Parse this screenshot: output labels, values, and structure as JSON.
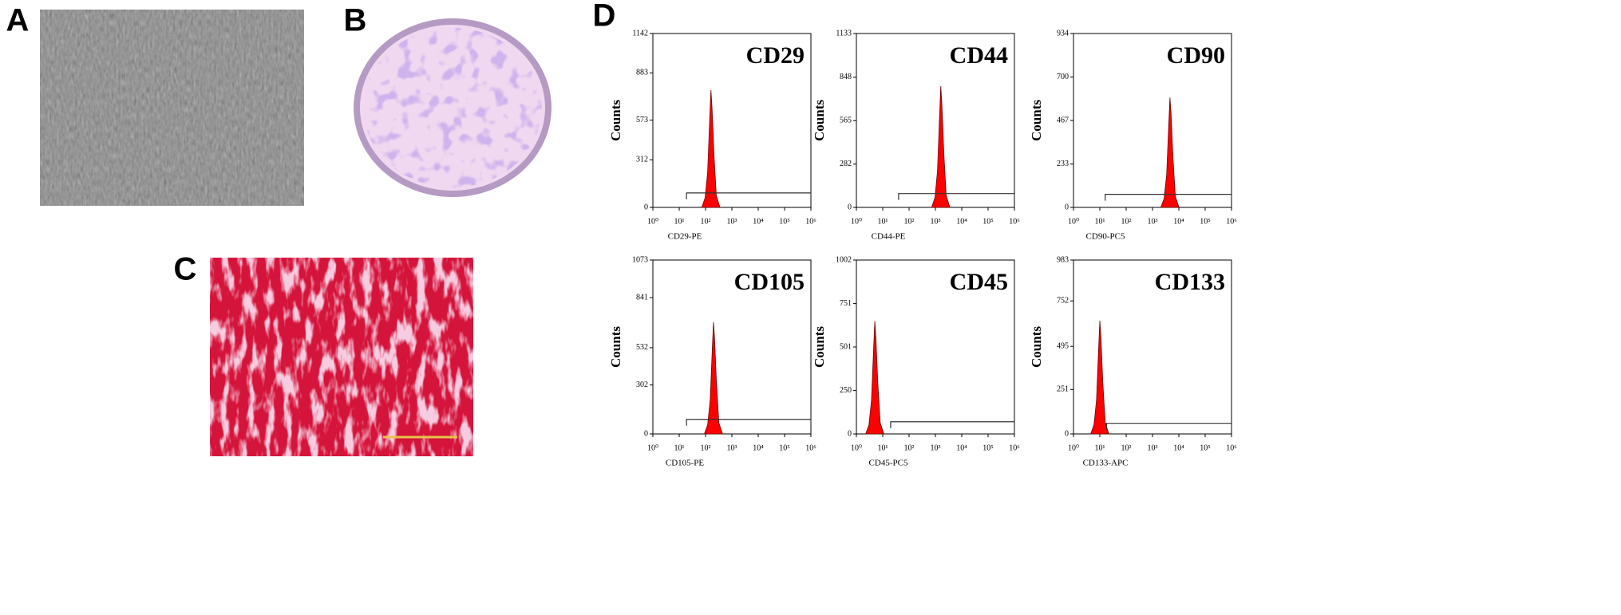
{
  "panel_labels": [
    "A",
    "B",
    "C",
    "D"
  ],
  "chart_data": [
    {
      "type": "histogram",
      "title": "CD29",
      "xlabel": "CD29-PE",
      "ylabel": "Counts",
      "color": "#ff0000",
      "log_x": true,
      "xlim": [
        1,
        1000000
      ],
      "xticks": [
        {
          "value": 1,
          "label": "10⁰"
        },
        {
          "value": 10,
          "label": "10¹"
        },
        {
          "value": 100,
          "label": "10²"
        },
        {
          "value": 1000,
          "label": "10³"
        },
        {
          "value": 10000,
          "label": "10⁴"
        },
        {
          "value": 100000,
          "label": "10⁵"
        },
        {
          "value": 1000000,
          "label": "10⁶"
        }
      ],
      "ylim": [
        0,
        1142
      ],
      "yticks": [
        0,
        312,
        573,
        883,
        1142
      ],
      "x": [
        72,
        96,
        120,
        144,
        160,
        176,
        208,
        256,
        352
      ],
      "values": [
        0,
        62,
        231,
        578,
        770,
        655,
        347,
        77,
        0
      ],
      "gate": {
        "x": [
          19,
          1000000
        ],
        "y": 95
      }
    },
    {
      "type": "histogram",
      "title": "CD44",
      "xlabel": "CD44-PE",
      "ylabel": "Counts",
      "color": "#ff0000",
      "log_x": true,
      "xlim": [
        1,
        1000000
      ],
      "xticks": [
        {
          "value": 1,
          "label": "10⁰"
        },
        {
          "value": 10,
          "label": "10¹"
        },
        {
          "value": 100,
          "label": "10²"
        },
        {
          "value": 1000,
          "label": "10³"
        },
        {
          "value": 10000,
          "label": "10⁴"
        },
        {
          "value": 100000,
          "label": "10⁵"
        },
        {
          "value": 1000000,
          "label": "10⁶"
        }
      ],
      "ylim": [
        0,
        1133
      ],
      "yticks": [
        0,
        282,
        565,
        848,
        1133
      ],
      "x": [
        720,
        960,
        1200,
        1440,
        1600,
        1760,
        2080,
        2560,
        3520
      ],
      "values": [
        0,
        63,
        237,
        593,
        790,
        672,
        356,
        79,
        0
      ],
      "gate": {
        "x": [
          40,
          1000000
        ],
        "y": 90
      }
    },
    {
      "type": "histogram",
      "title": "CD90",
      "xlabel": "CD90-PC5",
      "ylabel": "Counts",
      "color": "#ff0000",
      "log_x": true,
      "xlim": [
        1,
        1000000
      ],
      "xticks": [
        {
          "value": 1,
          "label": "10⁰"
        },
        {
          "value": 10,
          "label": "10¹"
        },
        {
          "value": 100,
          "label": "10²"
        },
        {
          "value": 1000,
          "label": "10³"
        },
        {
          "value": 10000,
          "label": "10⁴"
        },
        {
          "value": 100000,
          "label": "10⁵"
        },
        {
          "value": 1000000,
          "label": "10⁶"
        }
      ],
      "ylim": [
        0,
        934
      ],
      "yticks": [
        0,
        233,
        467,
        700,
        934
      ],
      "x": [
        2070,
        2760,
        3450,
        4140,
        4600,
        5060,
        5980,
        7360,
        10120
      ],
      "values": [
        0,
        47,
        177,
        443,
        590,
        502,
        266,
        59,
        0
      ],
      "gate": {
        "x": [
          16,
          1000000
        ],
        "y": 70
      }
    },
    {
      "type": "histogram",
      "title": "CD105",
      "xlabel": "CD105-PE",
      "ylabel": "Counts",
      "color": "#ff0000",
      "log_x": true,
      "xlim": [
        1,
        1000000
      ],
      "xticks": [
        {
          "value": 1,
          "label": "10⁰"
        },
        {
          "value": 10,
          "label": "10¹"
        },
        {
          "value": 100,
          "label": "10²"
        },
        {
          "value": 1000,
          "label": "10³"
        },
        {
          "value": 10000,
          "label": "10⁴"
        },
        {
          "value": 100000,
          "label": "10⁵"
        },
        {
          "value": 1000000,
          "label": "10⁶"
        }
      ],
      "ylim": [
        0,
        1073
      ],
      "yticks": [
        0,
        302,
        532,
        841,
        1073
      ],
      "x": [
        90,
        120,
        150,
        180,
        200,
        220,
        260,
        320,
        440
      ],
      "values": [
        0,
        55,
        207,
        518,
        690,
        587,
        311,
        69,
        0
      ],
      "gate": {
        "x": [
          19,
          1000000
        ],
        "y": 90
      }
    },
    {
      "type": "histogram",
      "title": "CD45",
      "xlabel": "CD45-PC5",
      "ylabel": "Counts",
      "color": "#ff0000",
      "log_x": true,
      "xlim": [
        1,
        1000000
      ],
      "xticks": [
        {
          "value": 1,
          "label": "10⁰"
        },
        {
          "value": 10,
          "label": "10¹"
        },
        {
          "value": 100,
          "label": "10²"
        },
        {
          "value": 1000,
          "label": "10³"
        },
        {
          "value": 10000,
          "label": "10⁴"
        },
        {
          "value": 100000,
          "label": "10⁵"
        },
        {
          "value": 1000000,
          "label": "10⁶"
        }
      ],
      "ylim": [
        0,
        1002
      ],
      "yticks": [
        0,
        250,
        501,
        751,
        1002
      ],
      "x": [
        2.25,
        3,
        3.75,
        4.5,
        5,
        5.5,
        6.5,
        8,
        11
      ],
      "values": [
        0,
        52,
        195,
        488,
        650,
        553,
        293,
        65,
        0
      ],
      "gate": {
        "x": [
          20,
          1000000
        ],
        "y": 70
      }
    },
    {
      "type": "histogram",
      "title": "CD133",
      "xlabel": "CD133-APC",
      "ylabel": "Counts",
      "color": "#ff0000",
      "log_x": true,
      "xlim": [
        1,
        1000000
      ],
      "xticks": [
        {
          "value": 1,
          "label": "10⁰"
        },
        {
          "value": 10,
          "label": "10¹"
        },
        {
          "value": 100,
          "label": "10²"
        },
        {
          "value": 1000,
          "label": "10³"
        },
        {
          "value": 10000,
          "label": "10⁴"
        },
        {
          "value": 100000,
          "label": "10⁵"
        },
        {
          "value": 1000000,
          "label": "10⁶"
        }
      ],
      "ylim": [
        0,
        983
      ],
      "yticks": [
        0,
        251,
        495,
        752,
        983
      ],
      "x": [
        4.5,
        6,
        7.5,
        9,
        10,
        11,
        13,
        16,
        22
      ],
      "values": [
        0,
        51,
        192,
        480,
        640,
        544,
        288,
        64,
        0
      ],
      "gate": {
        "x": [
          18,
          1000000
        ],
        "y": 60
      }
    }
  ]
}
